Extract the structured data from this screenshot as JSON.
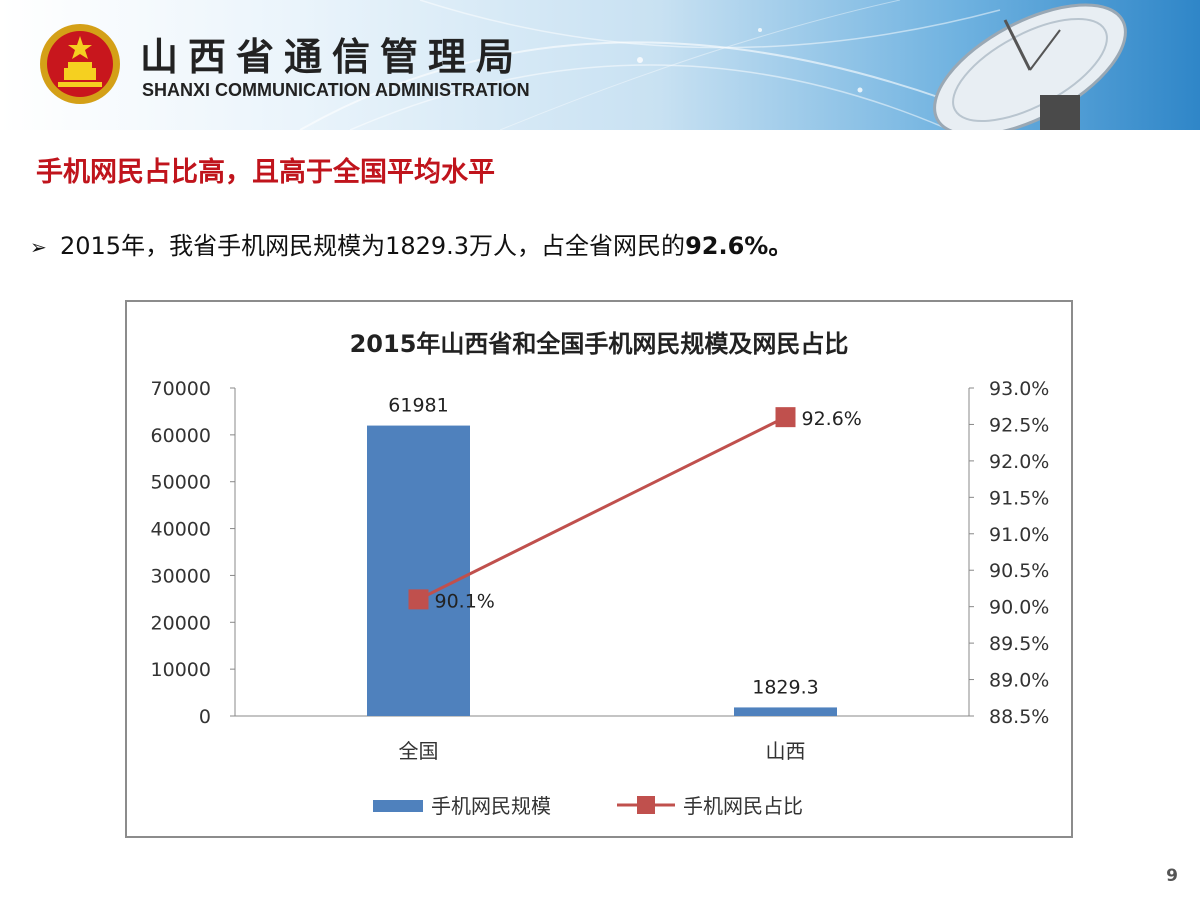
{
  "header": {
    "org_name_cn": "山西省通信管理局",
    "org_name_en": "SHANXI COMMUNICATION ADMINISTRATION",
    "emblem_icon": "national-emblem-icon",
    "dish_icon": "satellite-dish-icon"
  },
  "headline": "手机网民占比高，且高于全国平均水平",
  "bullet": {
    "marker": "➢",
    "text_prefix": "2015年，我省手机网民规模为1829.3万人，占全省网民的",
    "text_bold": "92.6%。"
  },
  "chart_data": {
    "type": "bar",
    "title": "2015年山西省和全国手机网民规模及网民占比",
    "categories": [
      "全国",
      "山西"
    ],
    "series": [
      {
        "name": "手机网民规模",
        "type": "bar",
        "axis": "left",
        "values": [
          61981,
          1829.3
        ],
        "labels": [
          "61981",
          "1829.3"
        ],
        "color": "#4f81bd"
      },
      {
        "name": "手机网民占比",
        "type": "line",
        "axis": "right",
        "values": [
          90.1,
          92.6
        ],
        "labels": [
          "90.1%",
          "92.6%"
        ],
        "color": "#c0504d"
      }
    ],
    "y_left": {
      "min": 0,
      "max": 70000,
      "step": 10000,
      "ticks": [
        "0",
        "10000",
        "20000",
        "30000",
        "40000",
        "50000",
        "60000",
        "70000"
      ]
    },
    "y_right": {
      "min": 88.5,
      "max": 93.0,
      "step": 0.5,
      "ticks": [
        "88.5%",
        "89.0%",
        "89.5%",
        "90.0%",
        "90.5%",
        "91.0%",
        "91.5%",
        "92.0%",
        "92.5%",
        "93.0%"
      ]
    },
    "grid": false,
    "legend_position": "bottom"
  },
  "page_number": "9"
}
